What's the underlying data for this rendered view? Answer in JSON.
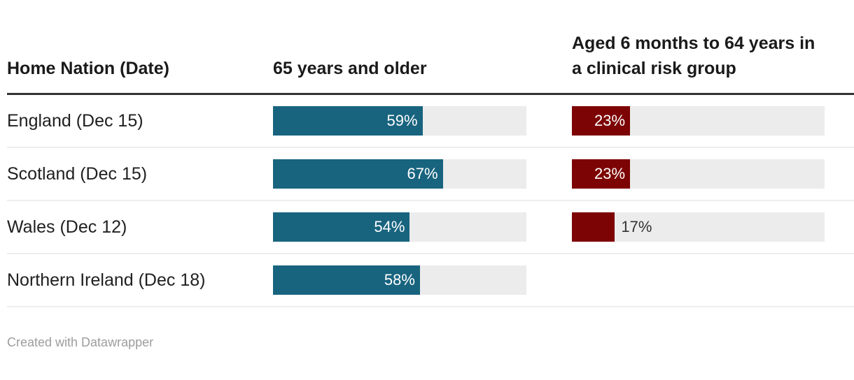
{
  "table": {
    "columns": [
      {
        "label": "Home Nation (Date)"
      },
      {
        "label": "65 years and older"
      },
      {
        "label": "Aged 6 months to 64 years in a clinical risk group"
      }
    ],
    "rows": [
      {
        "label": "England (Dec 15)",
        "older": {
          "pct": 59,
          "label": "59%"
        },
        "risk": {
          "pct": 23,
          "label": "23%"
        }
      },
      {
        "label": "Scotland (Dec 15)",
        "older": {
          "pct": 67,
          "label": "67%"
        },
        "risk": {
          "pct": 23,
          "label": "23%"
        }
      },
      {
        "label": "Wales (Dec 12)",
        "older": {
          "pct": 54,
          "label": "54%"
        },
        "risk": {
          "pct": 17,
          "label": "17%"
        }
      },
      {
        "label": "Northern Ireland (Dec 18)",
        "older": {
          "pct": 58,
          "label": "58%"
        },
        "risk": null
      }
    ]
  },
  "colors": {
    "bar_teal": "#18647f",
    "bar_maroon": "#7d0404",
    "track": "#ececec",
    "header_rule": "#333333",
    "row_rule": "#eeeeee"
  },
  "footer": {
    "attribution": "Created with Datawrapper"
  },
  "chart_data": {
    "type": "bar",
    "title": "",
    "categories": [
      "England (Dec 15)",
      "Scotland (Dec 15)",
      "Wales (Dec 12)",
      "Northern Ireland (Dec 18)"
    ],
    "series": [
      {
        "name": "65 years and older",
        "values": [
          59,
          67,
          54,
          58
        ]
      },
      {
        "name": "Aged 6 months to 64 years in a clinical risk group",
        "values": [
          23,
          23,
          17,
          null
        ]
      }
    ],
    "unit": "%",
    "xlim": [
      0,
      100
    ],
    "grid": false,
    "legend_position": "column-headers",
    "label_column_header": "Home Nation (Date)",
    "value_labels_shown": true
  }
}
